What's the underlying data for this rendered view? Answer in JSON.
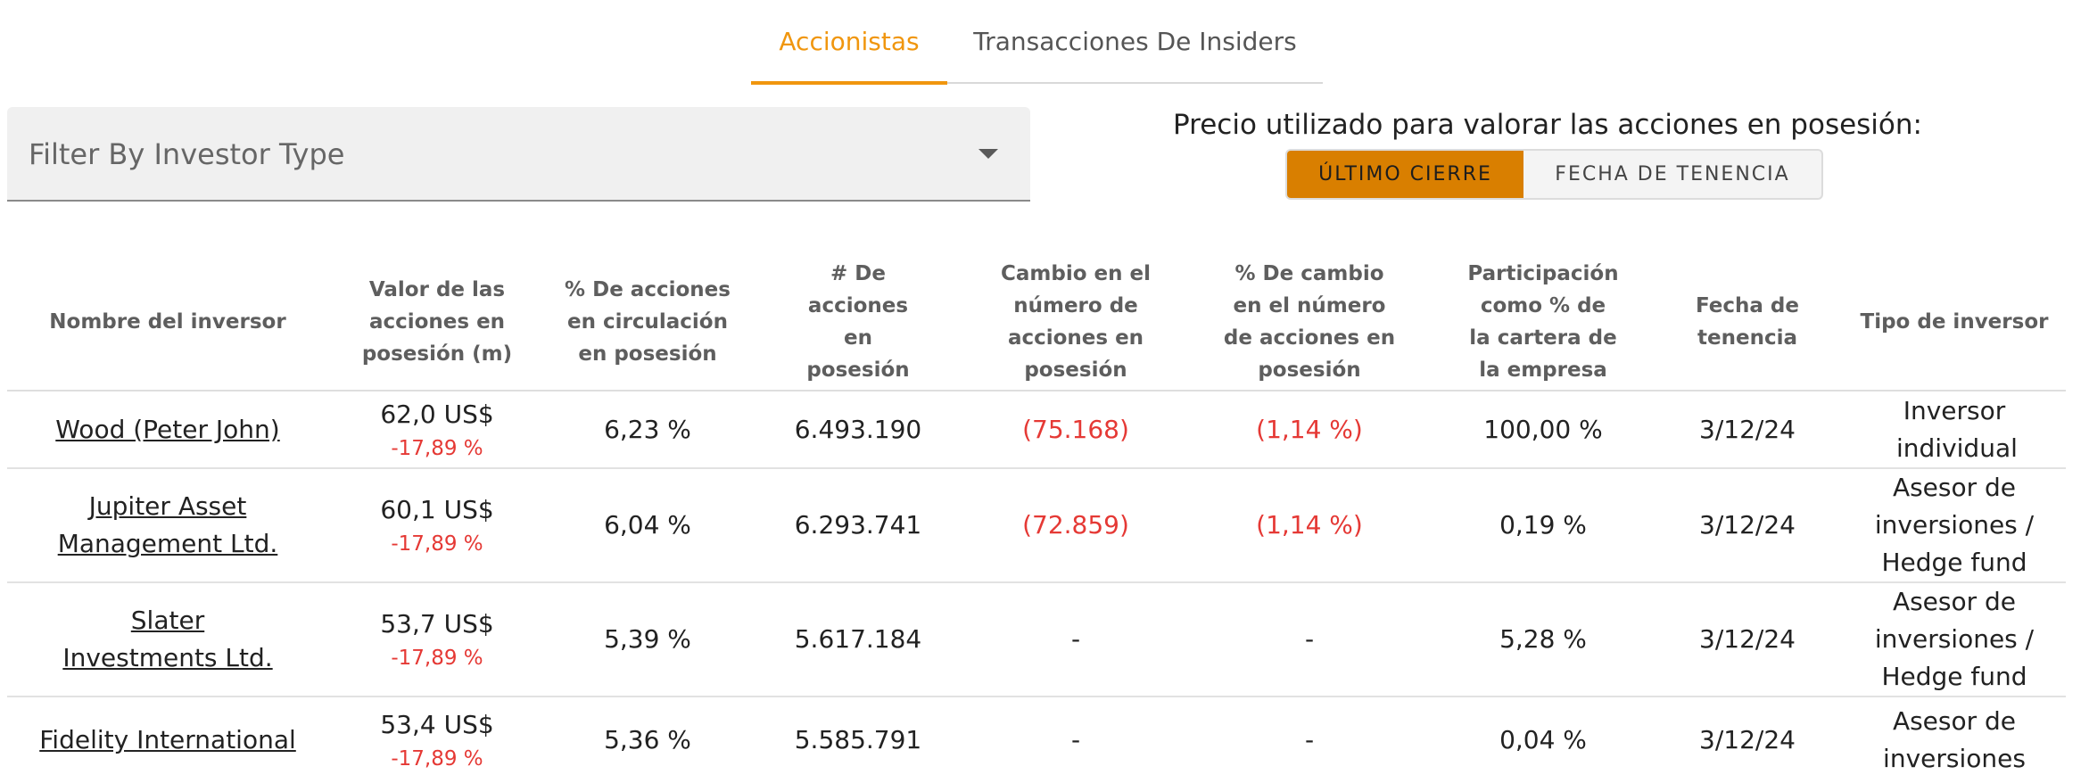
{
  "tabs": [
    {
      "label": "Accionistas",
      "active": true
    },
    {
      "label": "Transacciones De Insiders",
      "active": false
    }
  ],
  "filter": {
    "placeholder": "Filter By Investor Type"
  },
  "price": {
    "label": "Precio utilizado para valorar las acciones en posesión:",
    "options": [
      "ÚLTIMO CIERRE",
      "FECHA DE TENENCIA"
    ],
    "selected": "ÚLTIMO CIERRE"
  },
  "colors": {
    "accent": "#f0960e",
    "toggle_active": "#d97f00",
    "negative": "#e53935"
  },
  "table": {
    "headers": [
      "Nombre del inversor",
      "Valor de las acciones en posesión (m)",
      "% De acciones en circulación en posesión",
      "# De acciones en posesión",
      "Cambio en el número de acciones en posesión",
      "% De cambio en el número de acciones en posesión",
      "Participación como % de la cartera de la empresa",
      "Fecha de tenencia",
      "Tipo de inversor"
    ],
    "rows": [
      {
        "name": "Wood (Peter John)",
        "value": "62,0 US$",
        "change": "-17,89 %",
        "pct_out": "6,23 %",
        "shares": "6.493.190",
        "share_change": "(75.168)",
        "pct_change": "(1,14 %)",
        "portfolio": "100,00 %",
        "date": "3/12/24",
        "type": "Inversor individual"
      },
      {
        "name": "Jupiter Asset Management Ltd.",
        "value": "60,1 US$",
        "change": "-17,89 %",
        "pct_out": "6,04 %",
        "shares": "6.293.741",
        "share_change": "(72.859)",
        "pct_change": "(1,14 %)",
        "portfolio": "0,19 %",
        "date": "3/12/24",
        "type": "Asesor de inversiones / Hedge fund"
      },
      {
        "name": "Slater Investments Ltd.",
        "value": "53,7 US$",
        "change": "-17,89 %",
        "pct_out": "5,39 %",
        "shares": "5.617.184",
        "share_change": "-",
        "pct_change": "-",
        "portfolio": "5,28 %",
        "date": "3/12/24",
        "type": "Asesor de inversiones / Hedge fund"
      },
      {
        "name": "Fidelity International",
        "value": "53,4 US$",
        "change": "-17,89 %",
        "pct_out": "5,36 %",
        "shares": "5.585.791",
        "share_change": "-",
        "pct_change": "-",
        "portfolio": "0,04 %",
        "date": "3/12/24",
        "type": "Asesor de inversiones"
      }
    ]
  }
}
